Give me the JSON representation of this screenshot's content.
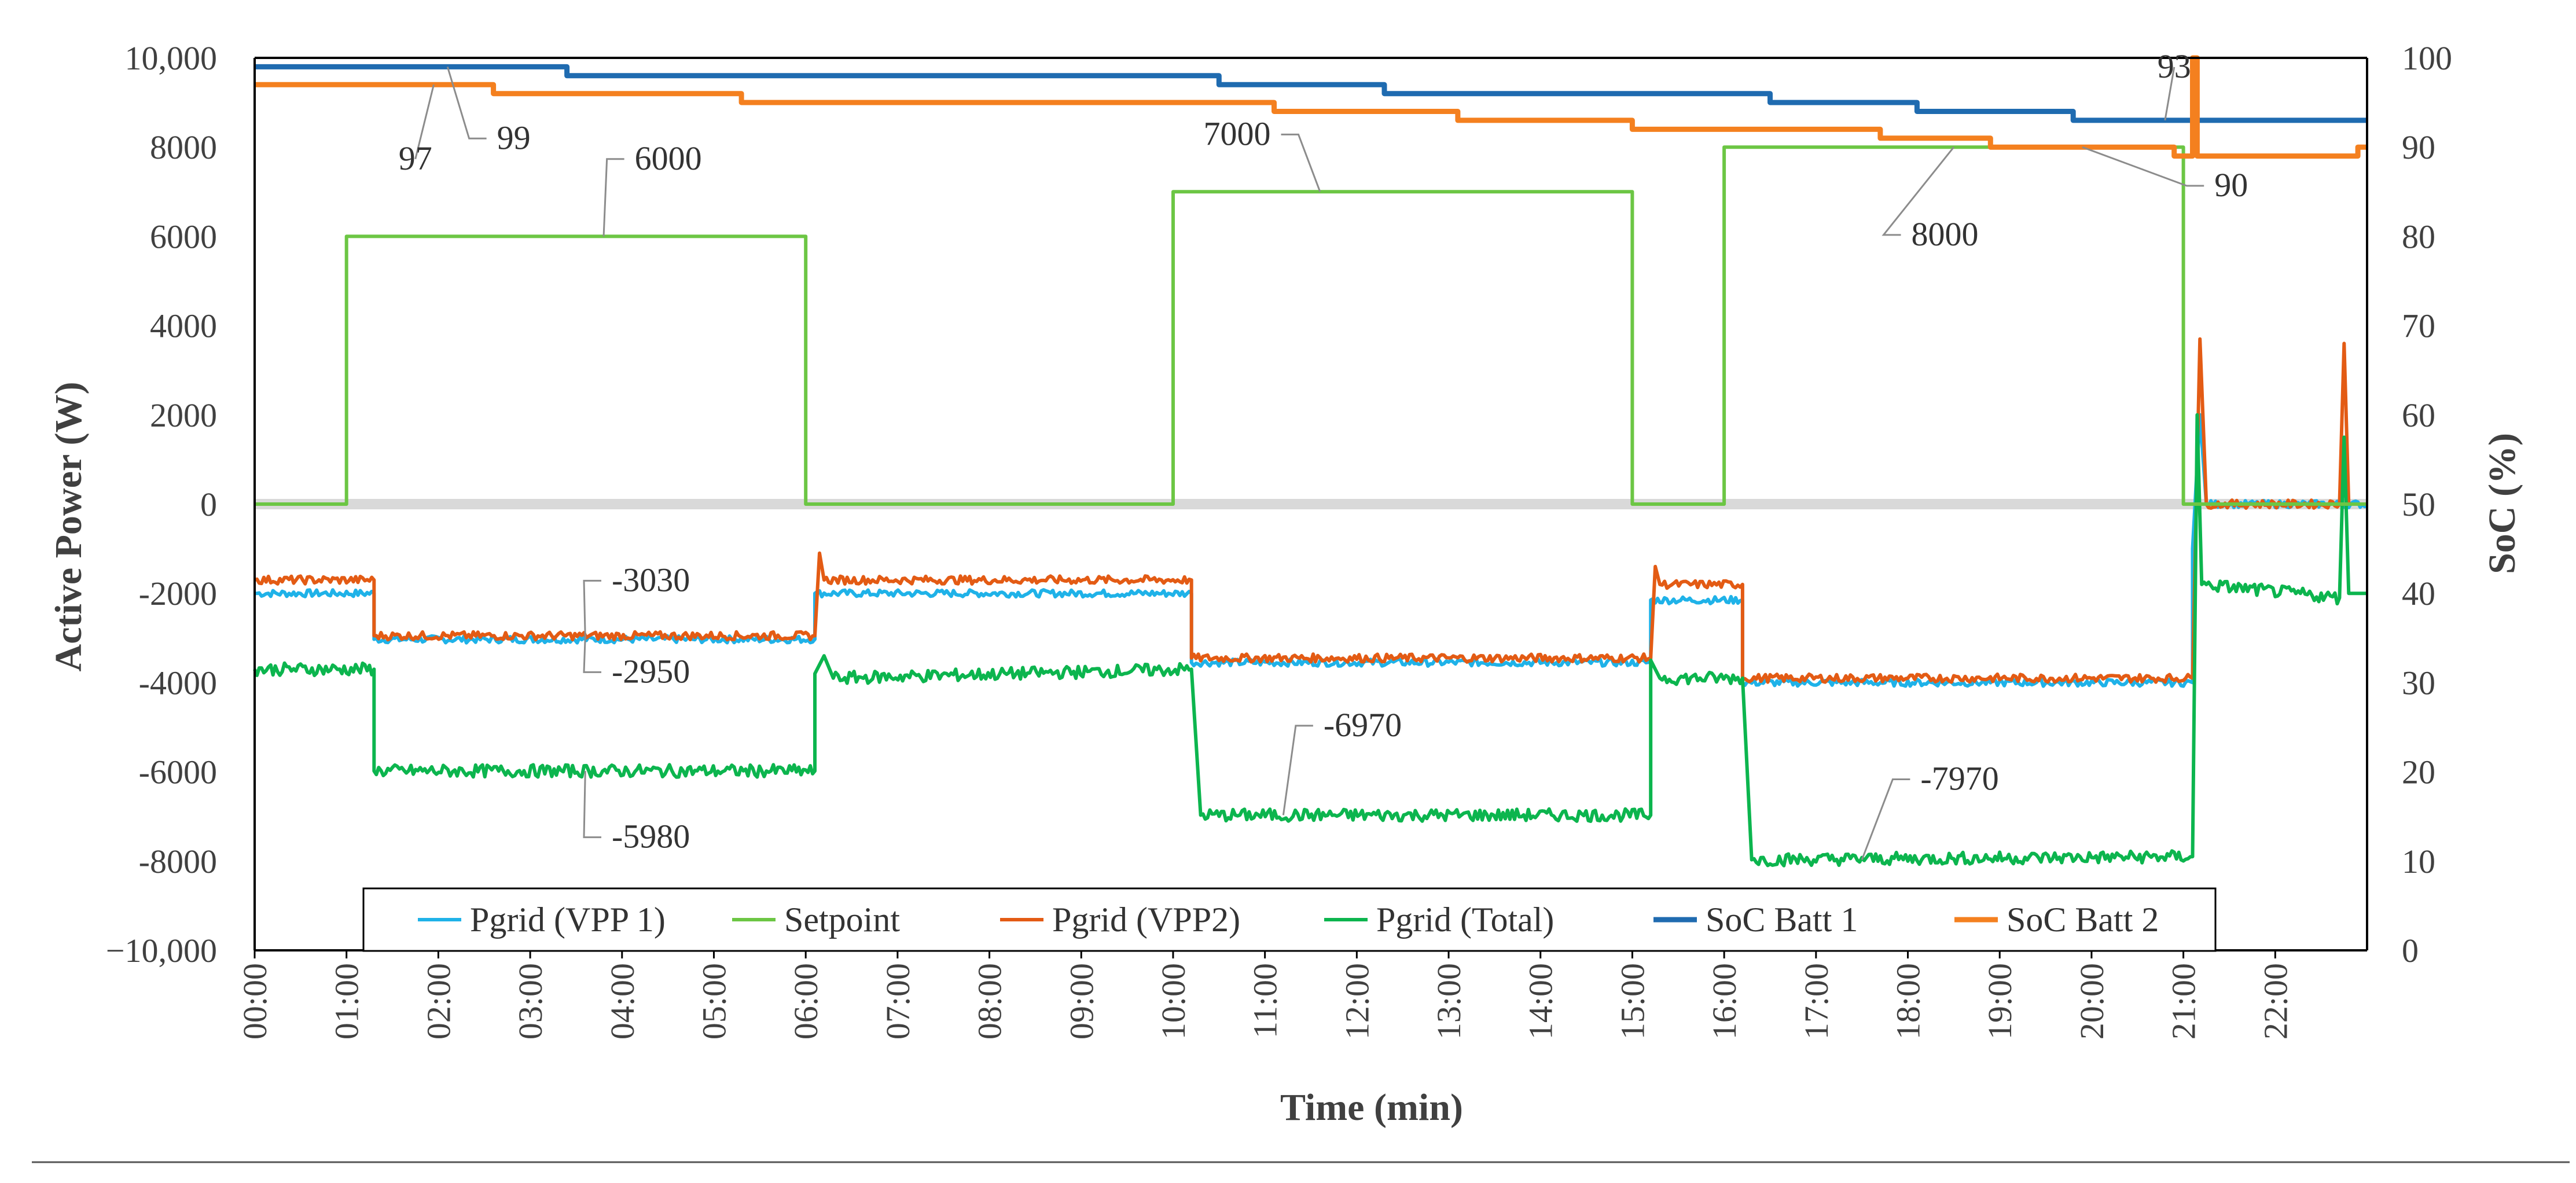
{
  "chart_data": {
    "type": "line",
    "title": "",
    "xlabel": "Time (min)",
    "ylabel": "Active Power (W)",
    "y2label": "SoC (%)",
    "xlim": [
      0,
      23
    ],
    "ylim": [
      -10000,
      10000
    ],
    "y2lim": [
      0,
      100
    ],
    "x_ticks": [
      "00:00",
      "01:00",
      "02:00",
      "03:00",
      "04:00",
      "05:00",
      "06:00",
      "07:00",
      "08:00",
      "09:00",
      "10:00",
      "11:00",
      "12:00",
      "13:00",
      "14:00",
      "15:00",
      "16:00",
      "17:00",
      "18:00",
      "19:00",
      "20:00",
      "21:00",
      "22:00"
    ],
    "y_ticks": [
      "10,000",
      "8000",
      "6000",
      "4000",
      "2000",
      "0",
      "-2000",
      "-4000",
      "-6000",
      "-8000",
      "−10,000"
    ],
    "y_tick_values": [
      10000,
      8000,
      6000,
      4000,
      2000,
      0,
      -2000,
      -4000,
      -6000,
      -8000,
      -10000
    ],
    "y2_ticks": [
      "100",
      "90",
      "80",
      "70",
      "60",
      "50",
      "40",
      "30",
      "20",
      "10",
      "0"
    ],
    "y2_tick_values": [
      100,
      90,
      80,
      70,
      60,
      50,
      40,
      30,
      20,
      10,
      0
    ],
    "legend_position": "bottom-center",
    "colors": {
      "pgrid_vpp1": "#1fb2e8",
      "setpoint": "#6cc644",
      "pgrid_vpp2": "#e35b14",
      "pgrid_total": "#0cb54e",
      "soc_batt1": "#1f6bb0",
      "soc_batt2": "#f4801f"
    },
    "series": [
      {
        "key": "pgrid_vpp1",
        "name": "Pgrid (VPP 1)",
        "axis": "left",
        "noise": 80,
        "points": [
          [
            0,
            -2000
          ],
          [
            1.3,
            -2000
          ],
          [
            1.3,
            -3030
          ],
          [
            6.1,
            -3030
          ],
          [
            6.1,
            -2000
          ],
          [
            10.2,
            -2000
          ],
          [
            10.2,
            -3550
          ],
          [
            15.2,
            -3550
          ],
          [
            15.2,
            -2150
          ],
          [
            16.2,
            -2150
          ],
          [
            16.2,
            -4000
          ],
          [
            21.1,
            -4000
          ],
          [
            21.1,
            -1000
          ],
          [
            21.18,
            2000
          ],
          [
            21.25,
            0
          ],
          [
            23,
            0
          ]
        ]
      },
      {
        "key": "setpoint",
        "name": "Setpoint",
        "axis": "left",
        "noise": 0,
        "points": [
          [
            0,
            0
          ],
          [
            1,
            0
          ],
          [
            1,
            6000
          ],
          [
            6,
            6000
          ],
          [
            6,
            0
          ],
          [
            10,
            0
          ],
          [
            10,
            7000
          ],
          [
            15,
            7000
          ],
          [
            15,
            0
          ],
          [
            16,
            0
          ],
          [
            16,
            8000
          ],
          [
            21,
            8000
          ],
          [
            21,
            0
          ],
          [
            23,
            0
          ]
        ]
      },
      {
        "key": "pgrid_vpp2",
        "name": "Pgrid (VPP2)",
        "axis": "left",
        "noise": 90,
        "points": [
          [
            0,
            -1700
          ],
          [
            1.3,
            -1700
          ],
          [
            1.3,
            -2950
          ],
          [
            6.1,
            -2950
          ],
          [
            6.15,
            -1100
          ],
          [
            6.2,
            -1700
          ],
          [
            10.2,
            -1700
          ],
          [
            10.2,
            -3450
          ],
          [
            15.2,
            -3450
          ],
          [
            15.25,
            -1400
          ],
          [
            15.3,
            -1800
          ],
          [
            16.2,
            -1800
          ],
          [
            16.2,
            -3900
          ],
          [
            21.1,
            -3900
          ],
          [
            21.18,
            3700
          ],
          [
            21.25,
            0
          ],
          [
            22.7,
            0
          ],
          [
            22.75,
            3600
          ],
          [
            22.8,
            0
          ],
          [
            23,
            0
          ]
        ]
      },
      {
        "key": "pgrid_total",
        "name": "Pgrid (Total)",
        "axis": "left",
        "noise": 140,
        "points": [
          [
            0,
            -3700
          ],
          [
            1.3,
            -3700
          ],
          [
            1.3,
            -5980
          ],
          [
            6.1,
            -5980
          ],
          [
            6.1,
            -3800
          ],
          [
            6.2,
            -3400
          ],
          [
            6.3,
            -3900
          ],
          [
            10.2,
            -3700
          ],
          [
            10.3,
            -6970
          ],
          [
            15.2,
            -6970
          ],
          [
            15.2,
            -3500
          ],
          [
            15.3,
            -3900
          ],
          [
            16.2,
            -3900
          ],
          [
            16.3,
            -7970
          ],
          [
            21.1,
            -7900
          ],
          [
            21.15,
            2000
          ],
          [
            21.2,
            -1800
          ],
          [
            22.7,
            -2100
          ],
          [
            22.75,
            1500
          ],
          [
            22.8,
            -2000
          ],
          [
            23,
            -2000
          ]
        ]
      },
      {
        "key": "soc_batt1",
        "name": "SoC Batt 1",
        "axis": "right",
        "noise": 0,
        "points": [
          [
            0,
            99
          ],
          [
            3.4,
            99
          ],
          [
            3.4,
            98
          ],
          [
            10.5,
            98
          ],
          [
            10.5,
            97
          ],
          [
            12.3,
            97
          ],
          [
            12.3,
            96
          ],
          [
            16.5,
            96
          ],
          [
            16.5,
            95
          ],
          [
            18.1,
            95
          ],
          [
            18.1,
            94
          ],
          [
            19.8,
            94
          ],
          [
            19.8,
            93
          ],
          [
            23,
            93
          ]
        ]
      },
      {
        "key": "soc_batt2",
        "name": "SoC Batt 2",
        "axis": "right",
        "noise": 0,
        "points": [
          [
            0,
            97
          ],
          [
            2.6,
            97
          ],
          [
            2.6,
            96
          ],
          [
            5.3,
            96
          ],
          [
            5.3,
            95
          ],
          [
            11.1,
            95
          ],
          [
            11.1,
            94
          ],
          [
            13.1,
            94
          ],
          [
            13.1,
            93
          ],
          [
            15,
            93
          ],
          [
            15,
            92
          ],
          [
            17.7,
            92
          ],
          [
            17.7,
            91
          ],
          [
            18.9,
            91
          ],
          [
            18.9,
            90
          ],
          [
            20.9,
            90
          ],
          [
            20.9,
            89
          ],
          [
            21.1,
            89
          ],
          [
            21.1,
            100
          ],
          [
            21.15,
            100
          ],
          [
            21.15,
            89
          ],
          [
            22.9,
            89
          ],
          [
            22.9,
            90
          ],
          [
            23,
            90
          ]
        ]
      }
    ],
    "annotations": [
      {
        "text": "6000",
        "x": 3.8,
        "y": 6000,
        "axis": "left",
        "label_x": 4.1,
        "label_y": 7500,
        "anchor": "start"
      },
      {
        "text": "7000",
        "x": 11.6,
        "y": 7000,
        "axis": "left",
        "label_x": 11.1,
        "label_y": 8050,
        "anchor": "end"
      },
      {
        "text": "8000",
        "x": 18.5,
        "y": 8000,
        "axis": "left",
        "label_x": 18.0,
        "label_y": 5800,
        "anchor": "start"
      },
      {
        "text": "-3030",
        "x": 3.6,
        "y": -3030,
        "axis": "left",
        "label_x": 3.85,
        "label_y": -1950,
        "anchor": "start"
      },
      {
        "text": "-2950",
        "x": 3.6,
        "y": -2950,
        "axis": "left",
        "label_x": 3.85,
        "label_y": -4000,
        "anchor": "start"
      },
      {
        "text": "-5980",
        "x": 3.6,
        "y": -5980,
        "axis": "left",
        "label_x": 3.85,
        "label_y": -7700,
        "anchor": "start"
      },
      {
        "text": "-6970",
        "x": 11.2,
        "y": -6970,
        "axis": "left",
        "label_x": 11.6,
        "label_y": -5200,
        "anchor": "start"
      },
      {
        "text": "-7970",
        "x": 17.5,
        "y": -7970,
        "axis": "left",
        "label_x": 18.1,
        "label_y": -6400,
        "anchor": "start"
      },
      {
        "text": "97",
        "x": 1.95,
        "y": 97,
        "axis": "right",
        "label_x": 1.75,
        "label_y": 87.5,
        "anchor": "middle"
      },
      {
        "text": "99",
        "x": 2.1,
        "y": 99,
        "axis": "right",
        "label_x": 2.6,
        "label_y": 89.8,
        "anchor": "start"
      },
      {
        "text": "93",
        "x": 20.8,
        "y": 93,
        "axis": "right",
        "label_x": 20.9,
        "label_y": 97.8,
        "anchor": "middle"
      },
      {
        "text": "90",
        "x": 19.9,
        "y": 90,
        "axis": "right",
        "label_x": 21.3,
        "label_y": 84.5,
        "anchor": "start"
      }
    ]
  }
}
